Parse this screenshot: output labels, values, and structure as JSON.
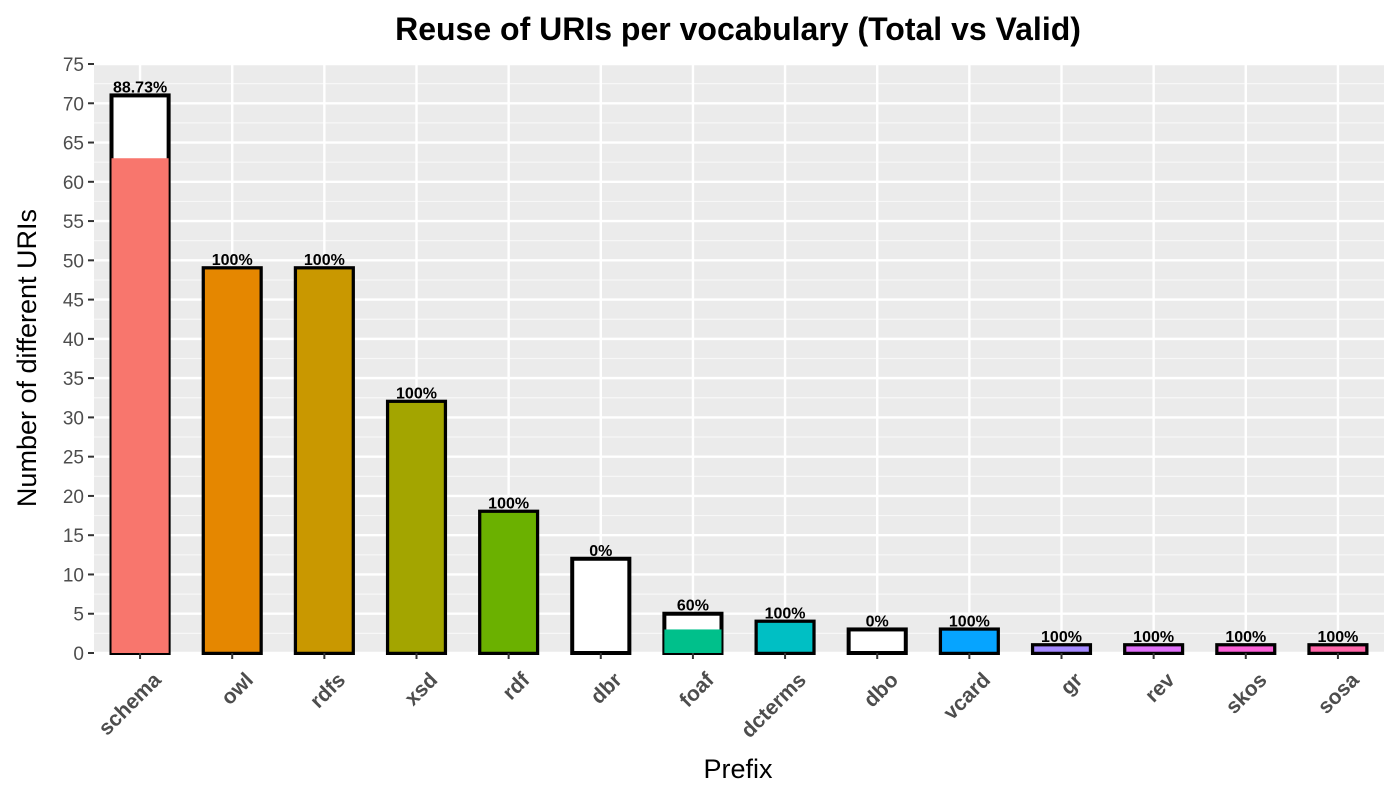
{
  "chart_data": {
    "type": "bar",
    "title": "Reuse of URIs per vocabulary (Total vs Valid)",
    "xlabel": "Prefix",
    "ylabel": "Number of different URIs",
    "ylim": [
      0,
      75
    ],
    "yticks": [
      0,
      5,
      10,
      15,
      20,
      25,
      30,
      35,
      40,
      45,
      50,
      55,
      60,
      65,
      70,
      75
    ],
    "grid": true,
    "categories": [
      "schema",
      "owl",
      "rdfs",
      "xsd",
      "rdf",
      "dbr",
      "foaf",
      "dcterms",
      "dbo",
      "vcard",
      "gr",
      "rev",
      "skos",
      "sosa"
    ],
    "series": [
      {
        "name": "Total",
        "values": [
          71,
          49,
          49,
          32,
          18,
          12,
          5,
          4,
          3,
          3,
          1,
          1,
          1,
          1
        ]
      },
      {
        "name": "Valid",
        "values": [
          63,
          49,
          49,
          32,
          18,
          0,
          3,
          4,
          0,
          3,
          1,
          1,
          1,
          1
        ]
      }
    ],
    "labels": [
      "88.73%",
      "100%",
      "100%",
      "100%",
      "100%",
      "0%",
      "60%",
      "100%",
      "0%",
      "100%",
      "100%",
      "100%",
      "100%",
      "100%"
    ],
    "colors": [
      "#F8766D",
      "#E58700",
      "#C99800",
      "#A3A500",
      "#6BB100",
      "#00BA38",
      "#00C08B",
      "#00BFC4",
      "#00B4EF",
      "#06A4FF",
      "#A58AFF",
      "#DF70F8",
      "#FB61D7",
      "#FF66A8"
    ]
  }
}
